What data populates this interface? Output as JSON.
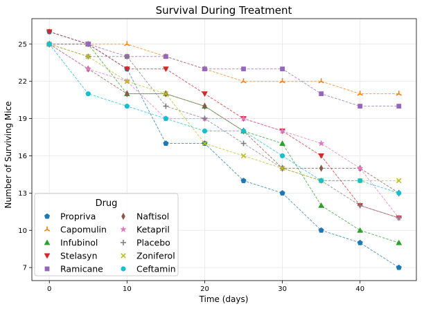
{
  "chart_data": {
    "type": "line",
    "title": "Survival During Treatment",
    "xlabel": "Time (days)",
    "ylabel": "Number of Surviving Mice",
    "x": [
      0,
      5,
      10,
      15,
      20,
      25,
      30,
      35,
      40,
      45
    ],
    "xlim": [
      -2.25,
      47.25
    ],
    "ylim": [
      5.95,
      27.05
    ],
    "xticks": [
      0,
      10,
      20,
      30,
      40
    ],
    "yticks": [
      7,
      10,
      13,
      16,
      19,
      22,
      25
    ],
    "grid": true,
    "legend": {
      "title": "Drug",
      "placement": "lower-left",
      "columns": 2
    },
    "series": [
      {
        "name": "Propriva",
        "color": "#1f77b4",
        "marker": "pentagon",
        "values": [
          26,
          25,
          23,
          17,
          17,
          14,
          13,
          10,
          9,
          7
        ]
      },
      {
        "name": "Capomulin",
        "color": "#ff7f0e",
        "marker": "tri-up",
        "values": [
          25,
          25,
          25,
          24,
          23,
          22,
          22,
          22,
          21,
          21
        ]
      },
      {
        "name": "Infubinol",
        "color": "#2ca02c",
        "marker": "triangle-up",
        "values": [
          25,
          25,
          21,
          21,
          20,
          18,
          17,
          12,
          10,
          9
        ]
      },
      {
        "name": "Stelasyn",
        "color": "#d62728",
        "marker": "triangle-down",
        "values": [
          26,
          25,
          23,
          23,
          21,
          19,
          18,
          16,
          12,
          11
        ]
      },
      {
        "name": "Ramicane",
        "color": "#9467bd",
        "marker": "square",
        "values": [
          25,
          25,
          24,
          24,
          23,
          23,
          23,
          21,
          20,
          20
        ]
      },
      {
        "name": "Naftisol",
        "color": "#8c564b",
        "marker": "thin-diamond",
        "values": [
          25,
          23,
          21,
          21,
          20,
          18,
          15,
          15,
          15,
          13
        ]
      },
      {
        "name": "Ketapril",
        "color": "#e377c2",
        "marker": "star",
        "values": [
          25,
          23,
          22,
          19,
          19,
          19,
          18,
          17,
          15,
          11
        ]
      },
      {
        "name": "Placebo",
        "color": "#7f7f7f",
        "marker": "plus",
        "values": [
          25,
          24,
          24,
          20,
          19,
          17,
          15,
          14,
          12,
          11
        ]
      },
      {
        "name": "Zoniferol",
        "color": "#bcbd22",
        "marker": "x",
        "values": [
          25,
          24,
          22,
          21,
          17,
          16,
          15,
          14,
          14,
          14
        ]
      },
      {
        "name": "Ceftamin",
        "color": "#17becf",
        "marker": "circle",
        "values": [
          25,
          21,
          20,
          19,
          18,
          18,
          16,
          14,
          14,
          13
        ]
      }
    ]
  }
}
